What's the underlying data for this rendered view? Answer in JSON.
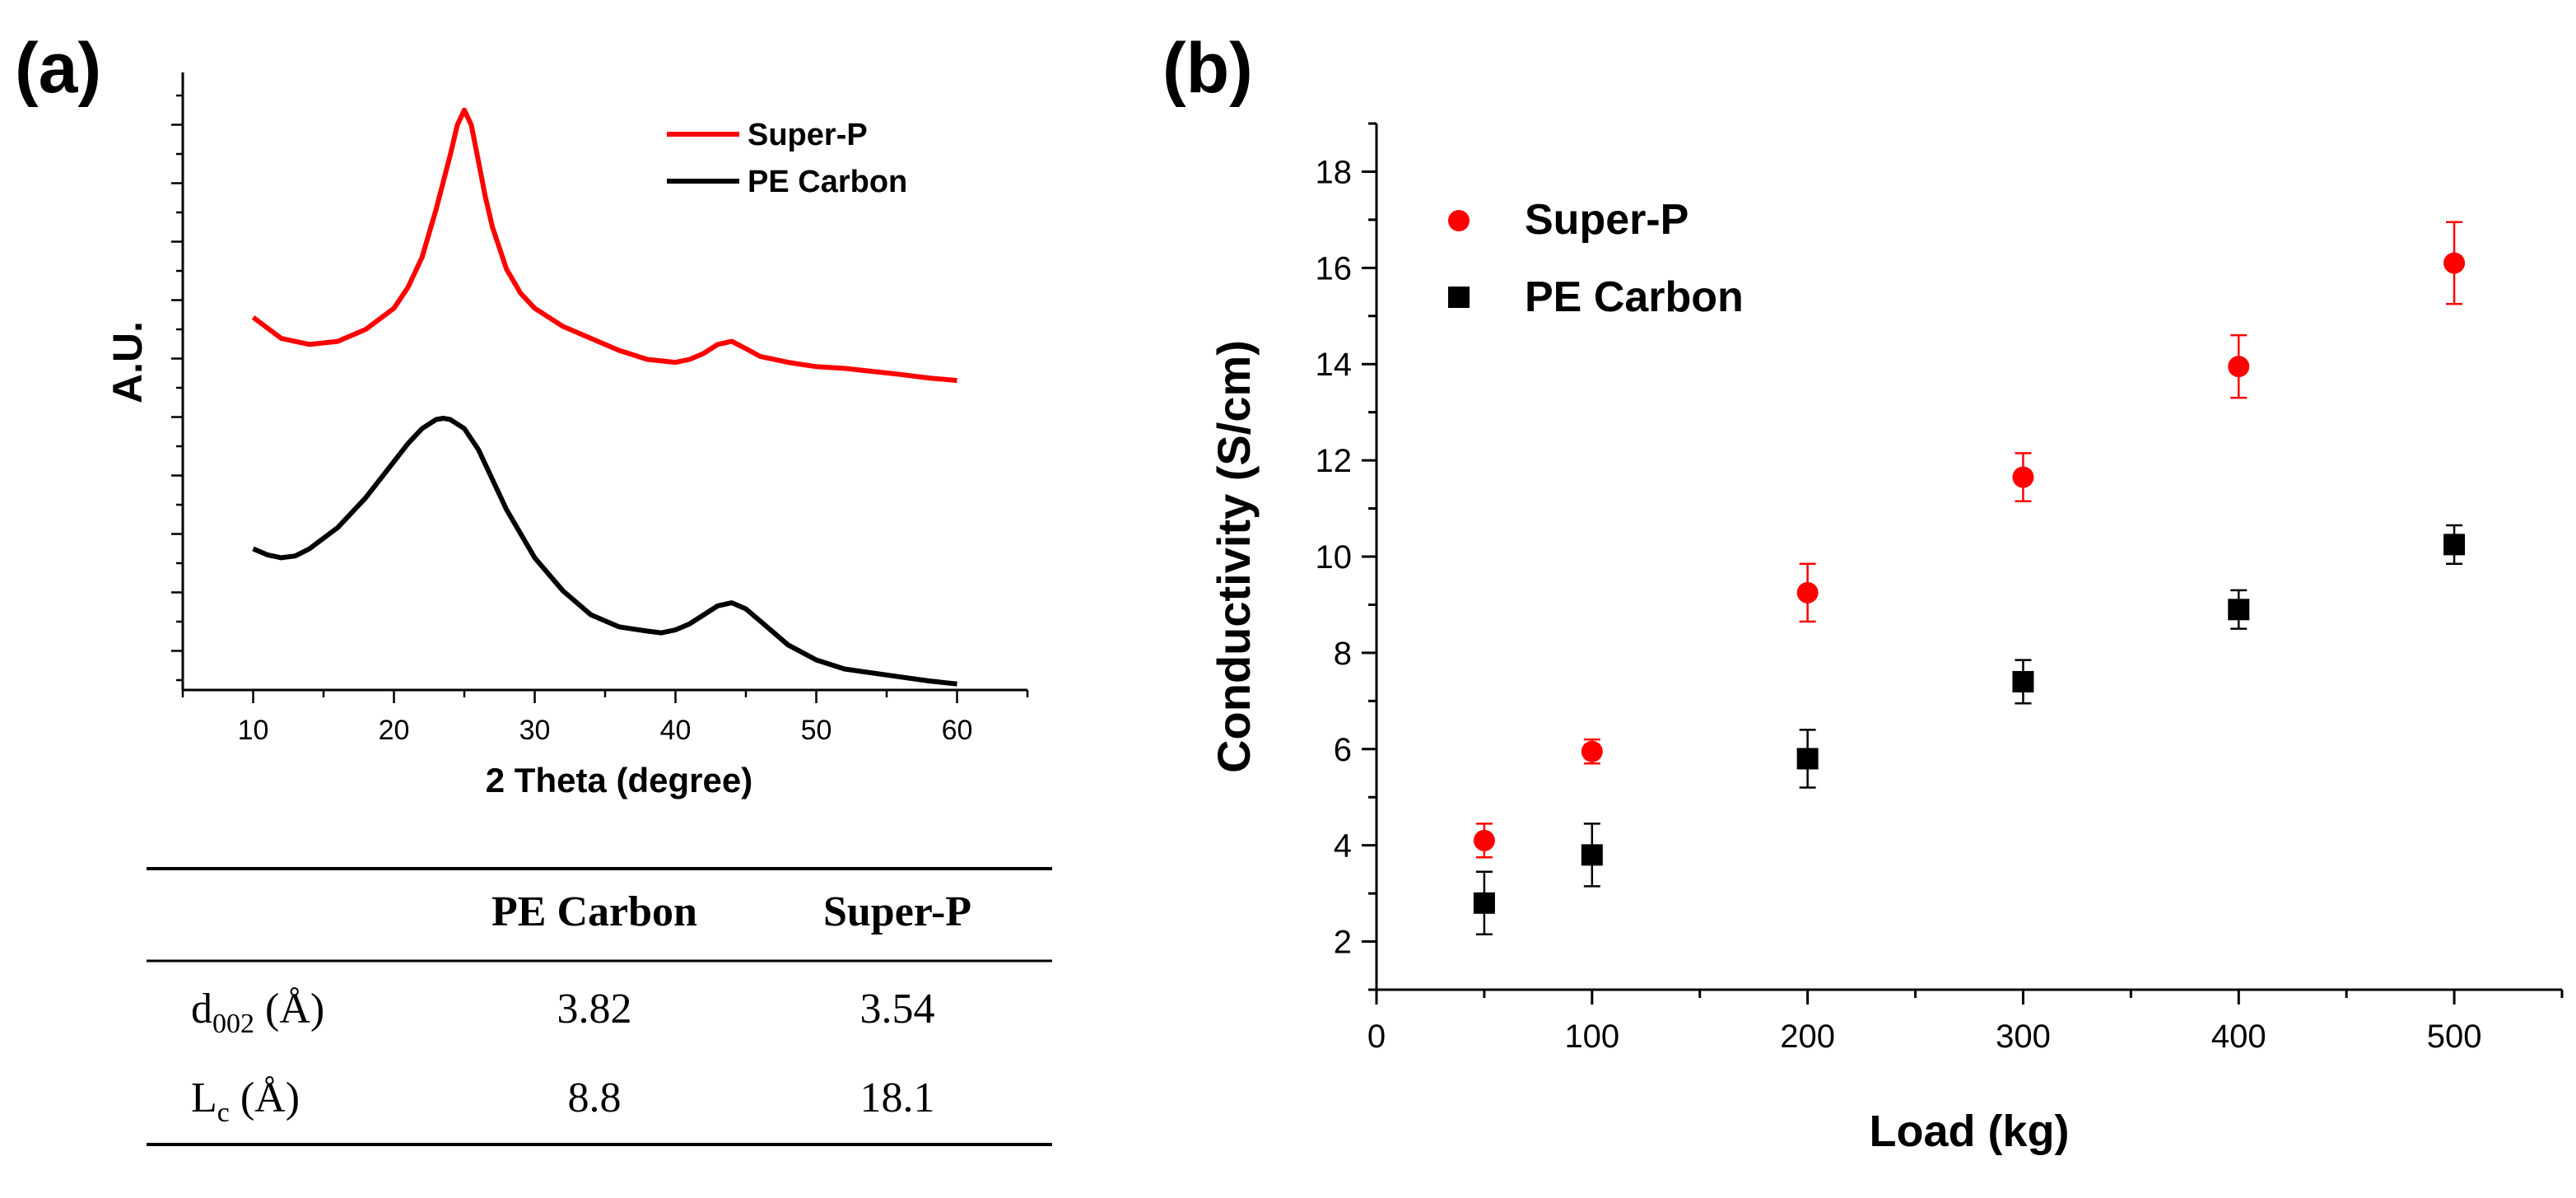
{
  "chart_data": [
    {
      "panel_label": "(a)",
      "type": "line",
      "xlabel": "2 Theta (degree)",
      "ylabel": "A.U.",
      "xlim": [
        5,
        65
      ],
      "ylim": [
        0,
        100
      ],
      "x_ticks": [
        10,
        20,
        30,
        40,
        50,
        60
      ],
      "grid": false,
      "legend_position": "top-right",
      "series": [
        {
          "name": "Super-P",
          "color": "#ff0000",
          "x": [
            10,
            12,
            14,
            16,
            18,
            20,
            21,
            22,
            23,
            24,
            24.5,
            25,
            25.5,
            26,
            26.5,
            27,
            28,
            29,
            30,
            32,
            34,
            36,
            38,
            40,
            41,
            42,
            43,
            44,
            45,
            46,
            48,
            50,
            52,
            54,
            56,
            58,
            60
          ],
          "y": [
            62,
            58.5,
            57.5,
            58,
            60,
            63.5,
            67,
            72,
            80,
            89,
            94,
            96.5,
            94,
            88,
            82,
            77,
            70,
            66,
            63.5,
            60.5,
            58.5,
            56.5,
            55,
            54.5,
            55,
            56,
            57.5,
            58,
            56.8,
            55.5,
            54.5,
            53.8,
            53.5,
            53,
            52.5,
            51.9,
            51.5
          ]
        },
        {
          "name": "PE Carbon",
          "color": "#000000",
          "x": [
            10,
            11,
            12,
            13,
            14,
            16,
            18,
            20,
            21,
            22,
            23,
            23.5,
            24,
            25,
            26,
            27,
            28,
            30,
            32,
            34,
            36,
            38,
            39,
            40,
            41,
            42,
            43,
            44,
            45,
            46,
            48,
            50,
            52,
            55,
            58,
            60
          ],
          "y": [
            23.5,
            22.5,
            22,
            22.3,
            23.5,
            27,
            32,
            38,
            41,
            43.5,
            45,
            45.2,
            45,
            43.5,
            40,
            35,
            30,
            22,
            16.5,
            12.5,
            10.5,
            9.8,
            9.5,
            10,
            11,
            12.5,
            14,
            14.5,
            13.5,
            11.5,
            7.5,
            5,
            3.5,
            2.5,
            1.5,
            1
          ]
        }
      ]
    },
    {
      "panel_label": "(b)",
      "type": "scatter",
      "xlabel": "Load (kg)",
      "ylabel": "Conductivity (S/cm)",
      "xlim": [
        0,
        550
      ],
      "ylim": [
        1,
        19
      ],
      "x_ticks": [
        0,
        100,
        200,
        300,
        400,
        500
      ],
      "y_ticks": [
        2,
        4,
        6,
        8,
        10,
        12,
        14,
        16,
        18
      ],
      "grid": false,
      "legend_position": "top-left",
      "series": [
        {
          "name": "Super-P",
          "color": "#ff0000",
          "marker": "circle",
          "x": [
            50,
            100,
            200,
            300,
            400,
            500
          ],
          "y": [
            4.1,
            5.95,
            9.25,
            11.65,
            13.95,
            16.1
          ],
          "err": [
            0.35,
            0.25,
            0.6,
            0.5,
            0.65,
            0.85
          ]
        },
        {
          "name": "PE Carbon",
          "color": "#000000",
          "marker": "square",
          "x": [
            50,
            100,
            200,
            300,
            400,
            500
          ],
          "y": [
            2.8,
            3.8,
            5.8,
            7.4,
            8.9,
            10.25
          ],
          "err": [
            0.65,
            0.65,
            0.6,
            0.45,
            0.4,
            0.4
          ]
        }
      ]
    }
  ],
  "table": {
    "headers": [
      "",
      "PE Carbon",
      "Super-P"
    ],
    "rows": [
      {
        "symbol": "d",
        "subscript": "002",
        "unit": " (Å)",
        "pe_carbon": "3.82",
        "super_p": "3.54"
      },
      {
        "symbol": "L",
        "subscript": "c",
        "unit": " (Å)",
        "pe_carbon": "8.8",
        "super_p": "18.1"
      }
    ]
  }
}
